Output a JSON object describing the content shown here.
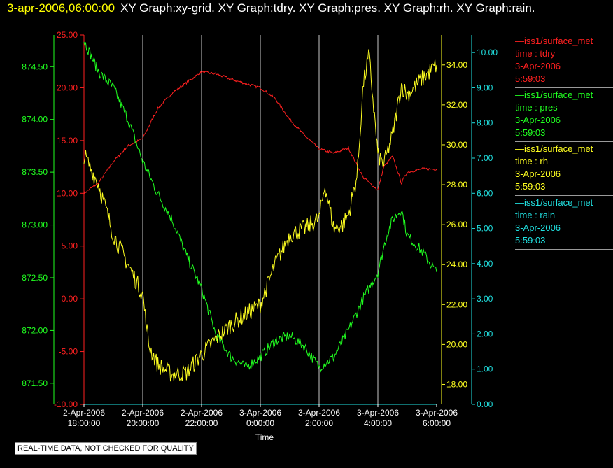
{
  "title": {
    "timestamp": "3-apr-2006,06:00:00",
    "graphs": "XY Graph:xy-grid.  XY Graph:tdry.  XY Graph:pres.  XY Graph:rh.  XY Graph:rain."
  },
  "note": "REAL-TIME DATA, NOT CHECKED FOR QUALITY",
  "legend": [
    {
      "line": "—iss1/surface_met",
      "field": "time : tdry",
      "date": "3-Apr-2006",
      "time": "5:59:03",
      "color": "#ff2020"
    },
    {
      "line": "—iss1/surface_met",
      "field": "time : pres",
      "date": "3-Apr-2006",
      "time": "5:59:03",
      "color": "#20ff20"
    },
    {
      "line": "—iss1/surface_met",
      "field": "time : rh",
      "date": "3-Apr-2006",
      "time": "5:59:03",
      "color": "#ffff20"
    },
    {
      "line": "—iss1/surface_met",
      "field": "time : rain",
      "date": "3-Apr-2006",
      "time": "5:59:03",
      "color": "#20e0e0"
    }
  ],
  "chart_data": {
    "type": "line",
    "xlabel": "Time",
    "xlim": [
      18,
      30
    ],
    "x_ticks": [
      {
        "x": 18,
        "label": [
          "2-Apr-2006",
          "18:00:00"
        ]
      },
      {
        "x": 20,
        "label": [
          "2-Apr-2006",
          "20:00:00"
        ]
      },
      {
        "x": 22,
        "label": [
          "2-Apr-2006",
          "22:00:00"
        ]
      },
      {
        "x": 24,
        "label": [
          "3-Apr-2006",
          "0:00:00"
        ]
      },
      {
        "x": 26,
        "label": [
          "3-Apr-2006",
          "2:00:00"
        ]
      },
      {
        "x": 28,
        "label": [
          "3-Apr-2006",
          "4:00:00"
        ]
      },
      {
        "x": 30,
        "label": [
          "3-Apr-2006",
          "6:00:00"
        ]
      }
    ],
    "grid": "vertical",
    "axes": [
      {
        "id": "tdry",
        "color": "#ff2020",
        "range": [
          -10,
          25
        ],
        "ticks": [
          "-10.00",
          "-5.00",
          "0.00",
          "5.00",
          "10.00",
          "15.00",
          "20.00",
          "25.00"
        ]
      },
      {
        "id": "pres",
        "color": "#20ff20",
        "range": [
          871.3,
          874.8
        ],
        "ticks": [
          "871.50",
          "872.00",
          "872.50",
          "873.00",
          "873.50",
          "874.00",
          "874.50"
        ]
      },
      {
        "id": "rh",
        "color": "#ffff20",
        "range": [
          17,
          35.5
        ],
        "ticks": [
          "18.00",
          "20.00",
          "22.00",
          "24.00",
          "26.00",
          "28.00",
          "30.00",
          "32.00",
          "34.00"
        ]
      },
      {
        "id": "rain",
        "color": "#20e0e0",
        "range": [
          0,
          10.5
        ],
        "ticks": [
          "0.00",
          "1.00",
          "2.00",
          "3.00",
          "4.00",
          "5.00",
          "6.00",
          "7.00",
          "8.00",
          "9.00",
          "10.00"
        ]
      }
    ],
    "series": [
      {
        "name": "iss1/surface_met time : tdry",
        "axis": "tdry",
        "color": "#ff2020",
        "noise": 0.12,
        "x": [
          18,
          18.5,
          19,
          19.5,
          20,
          20.5,
          21,
          21.5,
          22,
          22.5,
          23,
          23.5,
          24,
          24.5,
          25,
          25.5,
          26,
          26.5,
          27,
          27.5,
          28,
          28.2,
          28.5,
          28.8,
          29,
          29.5,
          30
        ],
        "y": [
          10,
          11,
          13,
          14.5,
          15.2,
          18,
          19.5,
          20.5,
          21.5,
          21.3,
          20.8,
          20.4,
          20,
          19,
          17,
          15.5,
          14.2,
          13.8,
          14.3,
          11.5,
          10.3,
          12.5,
          13.5,
          11,
          12,
          12.3,
          12.3
        ]
      },
      {
        "name": "iss1/surface_met time : pres",
        "axis": "pres",
        "color": "#20ff20",
        "noise": 0.05,
        "x": [
          18,
          18.5,
          19,
          19.5,
          20,
          20.5,
          21,
          21.5,
          22,
          22.5,
          23,
          23.5,
          24,
          24.5,
          25,
          25.5,
          26,
          26.5,
          27,
          27.5,
          28,
          28.3,
          28.5,
          28.8,
          29,
          29.5,
          30
        ],
        "y": [
          874.75,
          874.45,
          874.3,
          874.0,
          873.6,
          873.3,
          873.05,
          872.7,
          872.4,
          871.95,
          871.75,
          871.65,
          871.75,
          871.9,
          871.95,
          871.85,
          871.65,
          871.75,
          872.0,
          872.3,
          872.55,
          872.9,
          873.05,
          873.15,
          872.9,
          872.75,
          872.55
        ]
      },
      {
        "name": "iss1/surface_met time : rh",
        "axis": "rh",
        "color": "#ffff20",
        "noise": 0.45,
        "x": [
          18,
          18.5,
          19,
          19.5,
          20,
          20.2,
          20.5,
          21,
          21.5,
          22,
          22.5,
          23,
          23.5,
          24,
          24.5,
          25,
          25.5,
          26,
          26.2,
          26.5,
          26.8,
          27,
          27.3,
          27.5,
          27.7,
          28,
          28.2,
          28.5,
          28.8,
          29,
          29.5,
          30
        ],
        "y": [
          29.5,
          28,
          25.5,
          24,
          22.5,
          20,
          19,
          18.5,
          18.6,
          19.5,
          20.3,
          21,
          21.5,
          22,
          24,
          25.5,
          25.8,
          26.3,
          28,
          25.8,
          26,
          26.5,
          28.5,
          33,
          34.5,
          29.5,
          29,
          30.5,
          33,
          32.5,
          33.3,
          34
        ]
      },
      {
        "name": "iss1/surface_met time : rain",
        "axis": "rain",
        "color": "#20e0e0",
        "noise": 0,
        "x": [
          18,
          30
        ],
        "y": [
          0,
          0
        ]
      }
    ]
  }
}
